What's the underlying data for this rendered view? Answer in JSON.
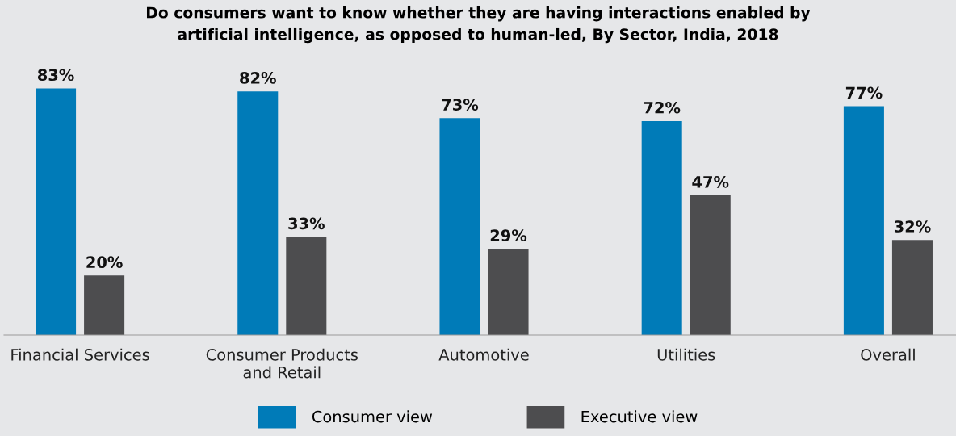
{
  "chart_data": {
    "type": "bar",
    "title": "Do consumers want to know whether they are having interactions enabled by\nartificial intelligence, as opposed to human-led, By Sector, India, 2018",
    "categories": [
      "Financial Services",
      "Consumer Products\nand Retail",
      "Automotive",
      "Utilities",
      "Overall"
    ],
    "series": [
      {
        "name": "Consumer view",
        "color": "#007bb8",
        "values": [
          83,
          82,
          73,
          72,
          77
        ],
        "value_labels": [
          "83%",
          "82%",
          "73%",
          "72%",
          "77%"
        ]
      },
      {
        "name": "Executive view",
        "color": "#4d4d4f",
        "values": [
          20,
          33,
          29,
          47,
          32
        ],
        "value_labels": [
          "20%",
          "33%",
          "29%",
          "47%",
          "32%"
        ]
      }
    ],
    "tick_labels": "x",
    "grid": false,
    "legend": "bottom"
  }
}
